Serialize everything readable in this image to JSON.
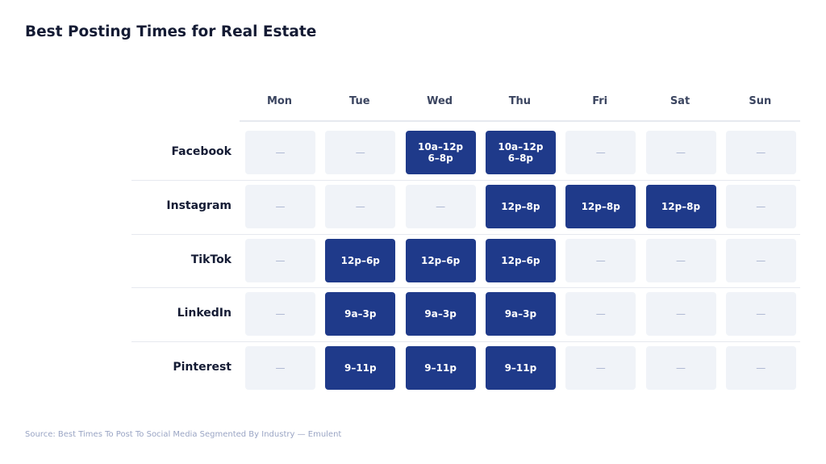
{
  "title": "Best Posting Times for Real Estate",
  "source": "Source: Best Times To Post To Social Media Segmented By Industry — Emulent",
  "colors": {
    "active": "#1f3a8a",
    "inactive": "#f0f3f8",
    "empty_mark": "#a9b3cf"
  },
  "chart_data": {
    "type": "table",
    "columns": [
      "Mon",
      "Tue",
      "Wed",
      "Thu",
      "Fri",
      "Sat",
      "Sun"
    ],
    "empty_marker": "—",
    "rows": [
      {
        "label": "Facebook",
        "cells": [
          "—",
          "—",
          "10a–12p\n6–8p",
          "10a–12p\n6–8p",
          "—",
          "—",
          "—"
        ]
      },
      {
        "label": "Instagram",
        "cells": [
          "—",
          "—",
          "—",
          "12p–8p",
          "12p–8p",
          "12p–8p",
          "—"
        ]
      },
      {
        "label": "TikTok",
        "cells": [
          "—",
          "12p–6p",
          "12p–6p",
          "12p–6p",
          "—",
          "—",
          "—"
        ]
      },
      {
        "label": "LinkedIn",
        "cells": [
          "—",
          "9a–3p",
          "9a–3p",
          "9a–3p",
          "—",
          "—",
          "—"
        ]
      },
      {
        "label": "Pinterest",
        "cells": [
          "—",
          "9–11p",
          "9–11p",
          "9–11p",
          "—",
          "—",
          "—"
        ]
      }
    ]
  }
}
